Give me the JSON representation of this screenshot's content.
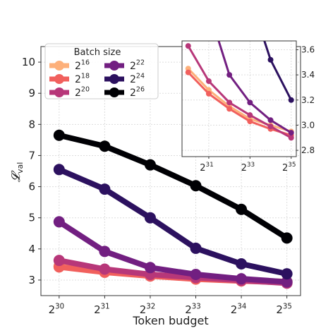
{
  "chart_data": {
    "type": "line",
    "xlabel": "Token budget",
    "ylabel": "𝓛",
    "ylabel_sub": "val",
    "x": [
      30,
      31,
      32,
      33,
      34,
      35
    ],
    "x_tick_labels": [
      {
        "base": "2",
        "exp": "30"
      },
      {
        "base": "2",
        "exp": "31"
      },
      {
        "base": "2",
        "exp": "32"
      },
      {
        "base": "2",
        "exp": "33"
      },
      {
        "base": "2",
        "exp": "34"
      },
      {
        "base": "2",
        "exp": "35"
      }
    ],
    "y_ticks": [
      3,
      4,
      5,
      6,
      7,
      8,
      9,
      10
    ],
    "xlim": [
      29.6,
      35.3
    ],
    "ylim": [
      2.5,
      10.5
    ],
    "grid": true,
    "legend": {
      "title": "Batch size",
      "placement": "top-left"
    },
    "series": [
      {
        "name": "2^16",
        "base": "2",
        "exp": "16",
        "color": "#fdb07a",
        "values": [
          3.45,
          3.28,
          3.15,
          3.05,
          3.0,
          2.95
        ]
      },
      {
        "name": "2^18",
        "base": "2",
        "exp": "18",
        "color": "#f1605d",
        "values": [
          3.42,
          3.25,
          3.13,
          3.03,
          2.97,
          2.92
        ]
      },
      {
        "name": "2^20",
        "base": "2",
        "exp": "20",
        "color": "#b73779",
        "values": [
          3.63,
          3.35,
          3.18,
          3.08,
          2.99,
          2.9
        ]
      },
      {
        "name": "2^22",
        "base": "2",
        "exp": "22",
        "color": "#721f81",
        "values": [
          4.87,
          3.92,
          3.4,
          3.18,
          3.04,
          2.94
        ]
      },
      {
        "name": "2^24",
        "base": "2",
        "exp": "24",
        "color": "#2c115f",
        "values": [
          6.55,
          5.92,
          5.0,
          4.02,
          3.52,
          3.2
        ]
      },
      {
        "name": "2^26",
        "base": "2",
        "exp": "26",
        "color": "#000004",
        "values": [
          7.65,
          7.3,
          6.7,
          6.03,
          5.27,
          4.35
        ]
      }
    ],
    "inset": {
      "placement": "top-right",
      "xlim": [
        29.7,
        35.25
      ],
      "ylim": [
        2.75,
        3.67
      ],
      "x_ticks": [
        31,
        33,
        35
      ],
      "x_tick_labels": [
        {
          "base": "2",
          "exp": "31"
        },
        {
          "base": "2",
          "exp": "33"
        },
        {
          "base": "2",
          "exp": "35"
        }
      ],
      "y_ticks": [
        2.8,
        3.0,
        3.2,
        3.4,
        3.6
      ],
      "y_tick_labels": [
        "2.8",
        "3.0",
        "3.2",
        "3.4",
        "3.6"
      ]
    }
  }
}
